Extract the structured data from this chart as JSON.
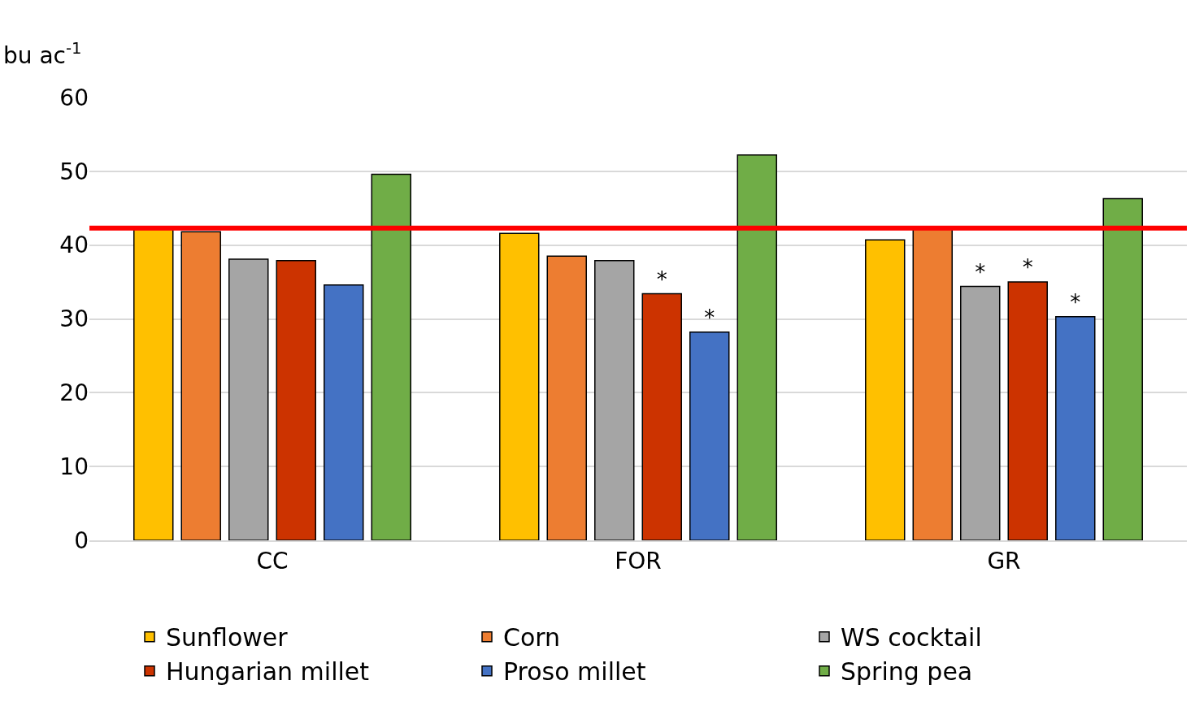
{
  "chart_data": {
    "type": "bar",
    "ylabel": "bu ac$^{-1}$",
    "categories": [
      "CC",
      "FOR",
      "GR"
    ],
    "series": [
      {
        "name": "Sunflower",
        "color": "#ffc000",
        "values": [
          42.3,
          41.6,
          40.7
        ]
      },
      {
        "name": "Corn",
        "color": "#ed7d31",
        "values": [
          41.8,
          38.5,
          42.3
        ]
      },
      {
        "name": "WS cocktail",
        "color": "#a5a5a5",
        "values": [
          38.1,
          37.9,
          34.4
        ],
        "value_labels": [
          null,
          null,
          "*"
        ]
      },
      {
        "name": "Hungarian millet",
        "color": "#cc3300",
        "values": [
          37.9,
          33.4,
          35.0
        ],
        "value_labels": [
          null,
          "*",
          "*"
        ]
      },
      {
        "name": "Proso millet",
        "color": "#4472c4",
        "values": [
          34.6,
          28.2,
          30.3
        ],
        "value_labels": [
          null,
          "*",
          "*"
        ]
      },
      {
        "name": "Spring pea",
        "color": "#70ad47",
        "values": [
          49.6,
          52.2,
          46.3
        ]
      }
    ],
    "ylim": [
      0,
      60
    ],
    "yticks": [
      0,
      10,
      20,
      30,
      40,
      50,
      60
    ],
    "grid": "y",
    "legend": "bottom",
    "ref_lines": [
      {
        "axis": "y",
        "value": 42.3,
        "color": "#ff0000"
      }
    ]
  }
}
